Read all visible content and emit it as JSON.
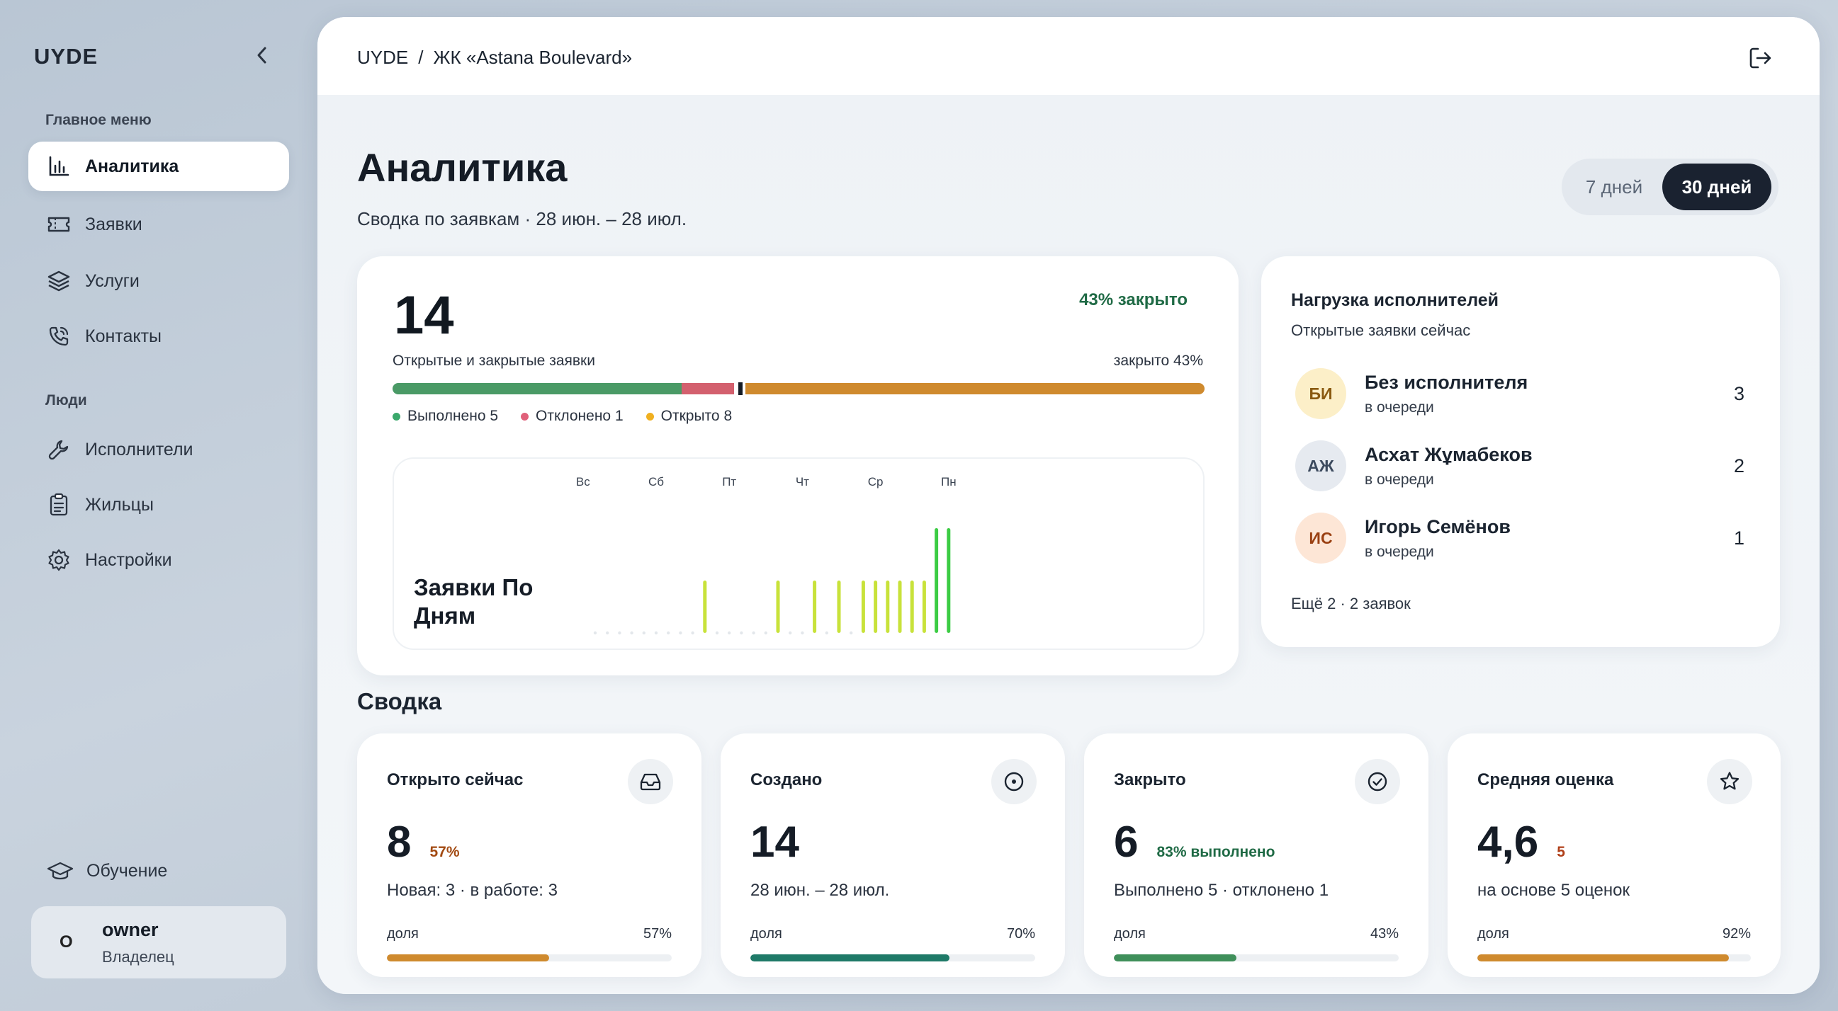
{
  "brand": "UYDE",
  "sidebar": {
    "main_section": "Главное меню",
    "people_section": "Люди",
    "main_items": [
      {
        "label": "Аналитика",
        "icon": "bar-chart-icon",
        "active": true
      },
      {
        "label": "Заявки",
        "icon": "ticket-icon"
      },
      {
        "label": "Услуги",
        "icon": "layers-icon"
      },
      {
        "label": "Контакты",
        "icon": "phone-icon"
      }
    ],
    "people_items": [
      {
        "label": "Исполнители",
        "icon": "wrench-icon"
      },
      {
        "label": "Жильцы",
        "icon": "clipboard-icon"
      },
      {
        "label": "Настройки",
        "icon": "gear-icon"
      }
    ],
    "learning": "Обучение",
    "user": {
      "avatar": "O",
      "name": "owner",
      "role": "Владелец"
    }
  },
  "breadcrumb": {
    "root": "UYDE",
    "sep": "/",
    "current": "ЖК «Astana Boulevard»"
  },
  "page": {
    "title": "Аналитика",
    "subtitle": "Сводка по заявкам · 28 июн. – 28 июл.",
    "ranges": [
      "7 дней",
      "30 дней"
    ],
    "active_range": "30 дней"
  },
  "overview": {
    "total": "14",
    "closed_pct_label": "43% закрыто",
    "bar_label": "Открытые и закрытые заявки",
    "bar_right": "закрыто 43%",
    "legend": [
      {
        "label": "Выполнено 5",
        "color": "#3aa86b"
      },
      {
        "label": "Отклонено 1",
        "color": "#e0607a"
      },
      {
        "label": "Открыто 8",
        "color": "#f0b020"
      }
    ],
    "composition": {
      "done": 5,
      "rejected": 1,
      "open": 8
    }
  },
  "chart_data": {
    "type": "bar",
    "title": "Заявки По Дням",
    "tick_labels": [
      "Вс",
      "Сб",
      "Пт",
      "Чт",
      "Ср",
      "Пн"
    ],
    "values": [
      0,
      0,
      0,
      0,
      0,
      0,
      0,
      0,
      0,
      1,
      0,
      0,
      0,
      0,
      0,
      1,
      0,
      0,
      1,
      0,
      1,
      0,
      1,
      1,
      1,
      1,
      1,
      1,
      2,
      2
    ],
    "colors": {
      "low": "#c8e23a",
      "high": "#3ccc44",
      "empty": "#e3e7eb"
    }
  },
  "workload": {
    "title": "Нагрузка исполнителей",
    "subtitle": "Открытые заявки сейчас",
    "items": [
      {
        "initials": "БИ",
        "name": "Без исполнителя",
        "status": "в очереди",
        "count": "3",
        "bg": "#fcefc8",
        "fg": "#8a5a10"
      },
      {
        "initials": "АЖ",
        "name": "Асхат Жұмабеков",
        "status": "в очереди",
        "count": "2",
        "bg": "#e6eaf0",
        "fg": "#3c4a5e"
      },
      {
        "initials": "ИС",
        "name": "Игорь Семёнов",
        "status": "в очереди",
        "count": "1",
        "bg": "#fde6d6",
        "fg": "#9a4012"
      }
    ],
    "more": "Ещё 2 · 2 заявок"
  },
  "summary": {
    "title": "Сводка",
    "cards": [
      {
        "title": "Открыто сейчас",
        "icon": "inbox-icon",
        "value": "8",
        "badge": "57%",
        "badge_color": "#a24a12",
        "desc": "Новая: 3 · в работе: 3",
        "share_label": "доля",
        "share_pct": "57%",
        "share": 0.57,
        "bar_color": "#cf8a2e"
      },
      {
        "title": "Создано",
        "icon": "target-icon",
        "value": "14",
        "badge": "",
        "badge_color": "#1f6a45",
        "desc": "28 июн. – 28 июл.",
        "share_label": "доля",
        "share_pct": "70%",
        "share": 0.7,
        "bar_color": "#1f7a68"
      },
      {
        "title": "Закрыто",
        "icon": "check-circle-icon",
        "value": "6",
        "badge": "83% выполнено",
        "badge_color": "#1f6a45",
        "desc": "Выполнено 5 · отклонено 1",
        "share_label": "доля",
        "share_pct": "43%",
        "share": 0.43,
        "bar_color": "#3f8f5a"
      },
      {
        "title": "Средняя оценка",
        "icon": "star-icon",
        "value": "4,6",
        "badge": "5",
        "badge_color": "#b0401a",
        "desc": "на основе 5 оценок",
        "share_label": "доля",
        "share_pct": "92%",
        "share": 0.92,
        "bar_color": "#cf8a2e"
      }
    ]
  }
}
